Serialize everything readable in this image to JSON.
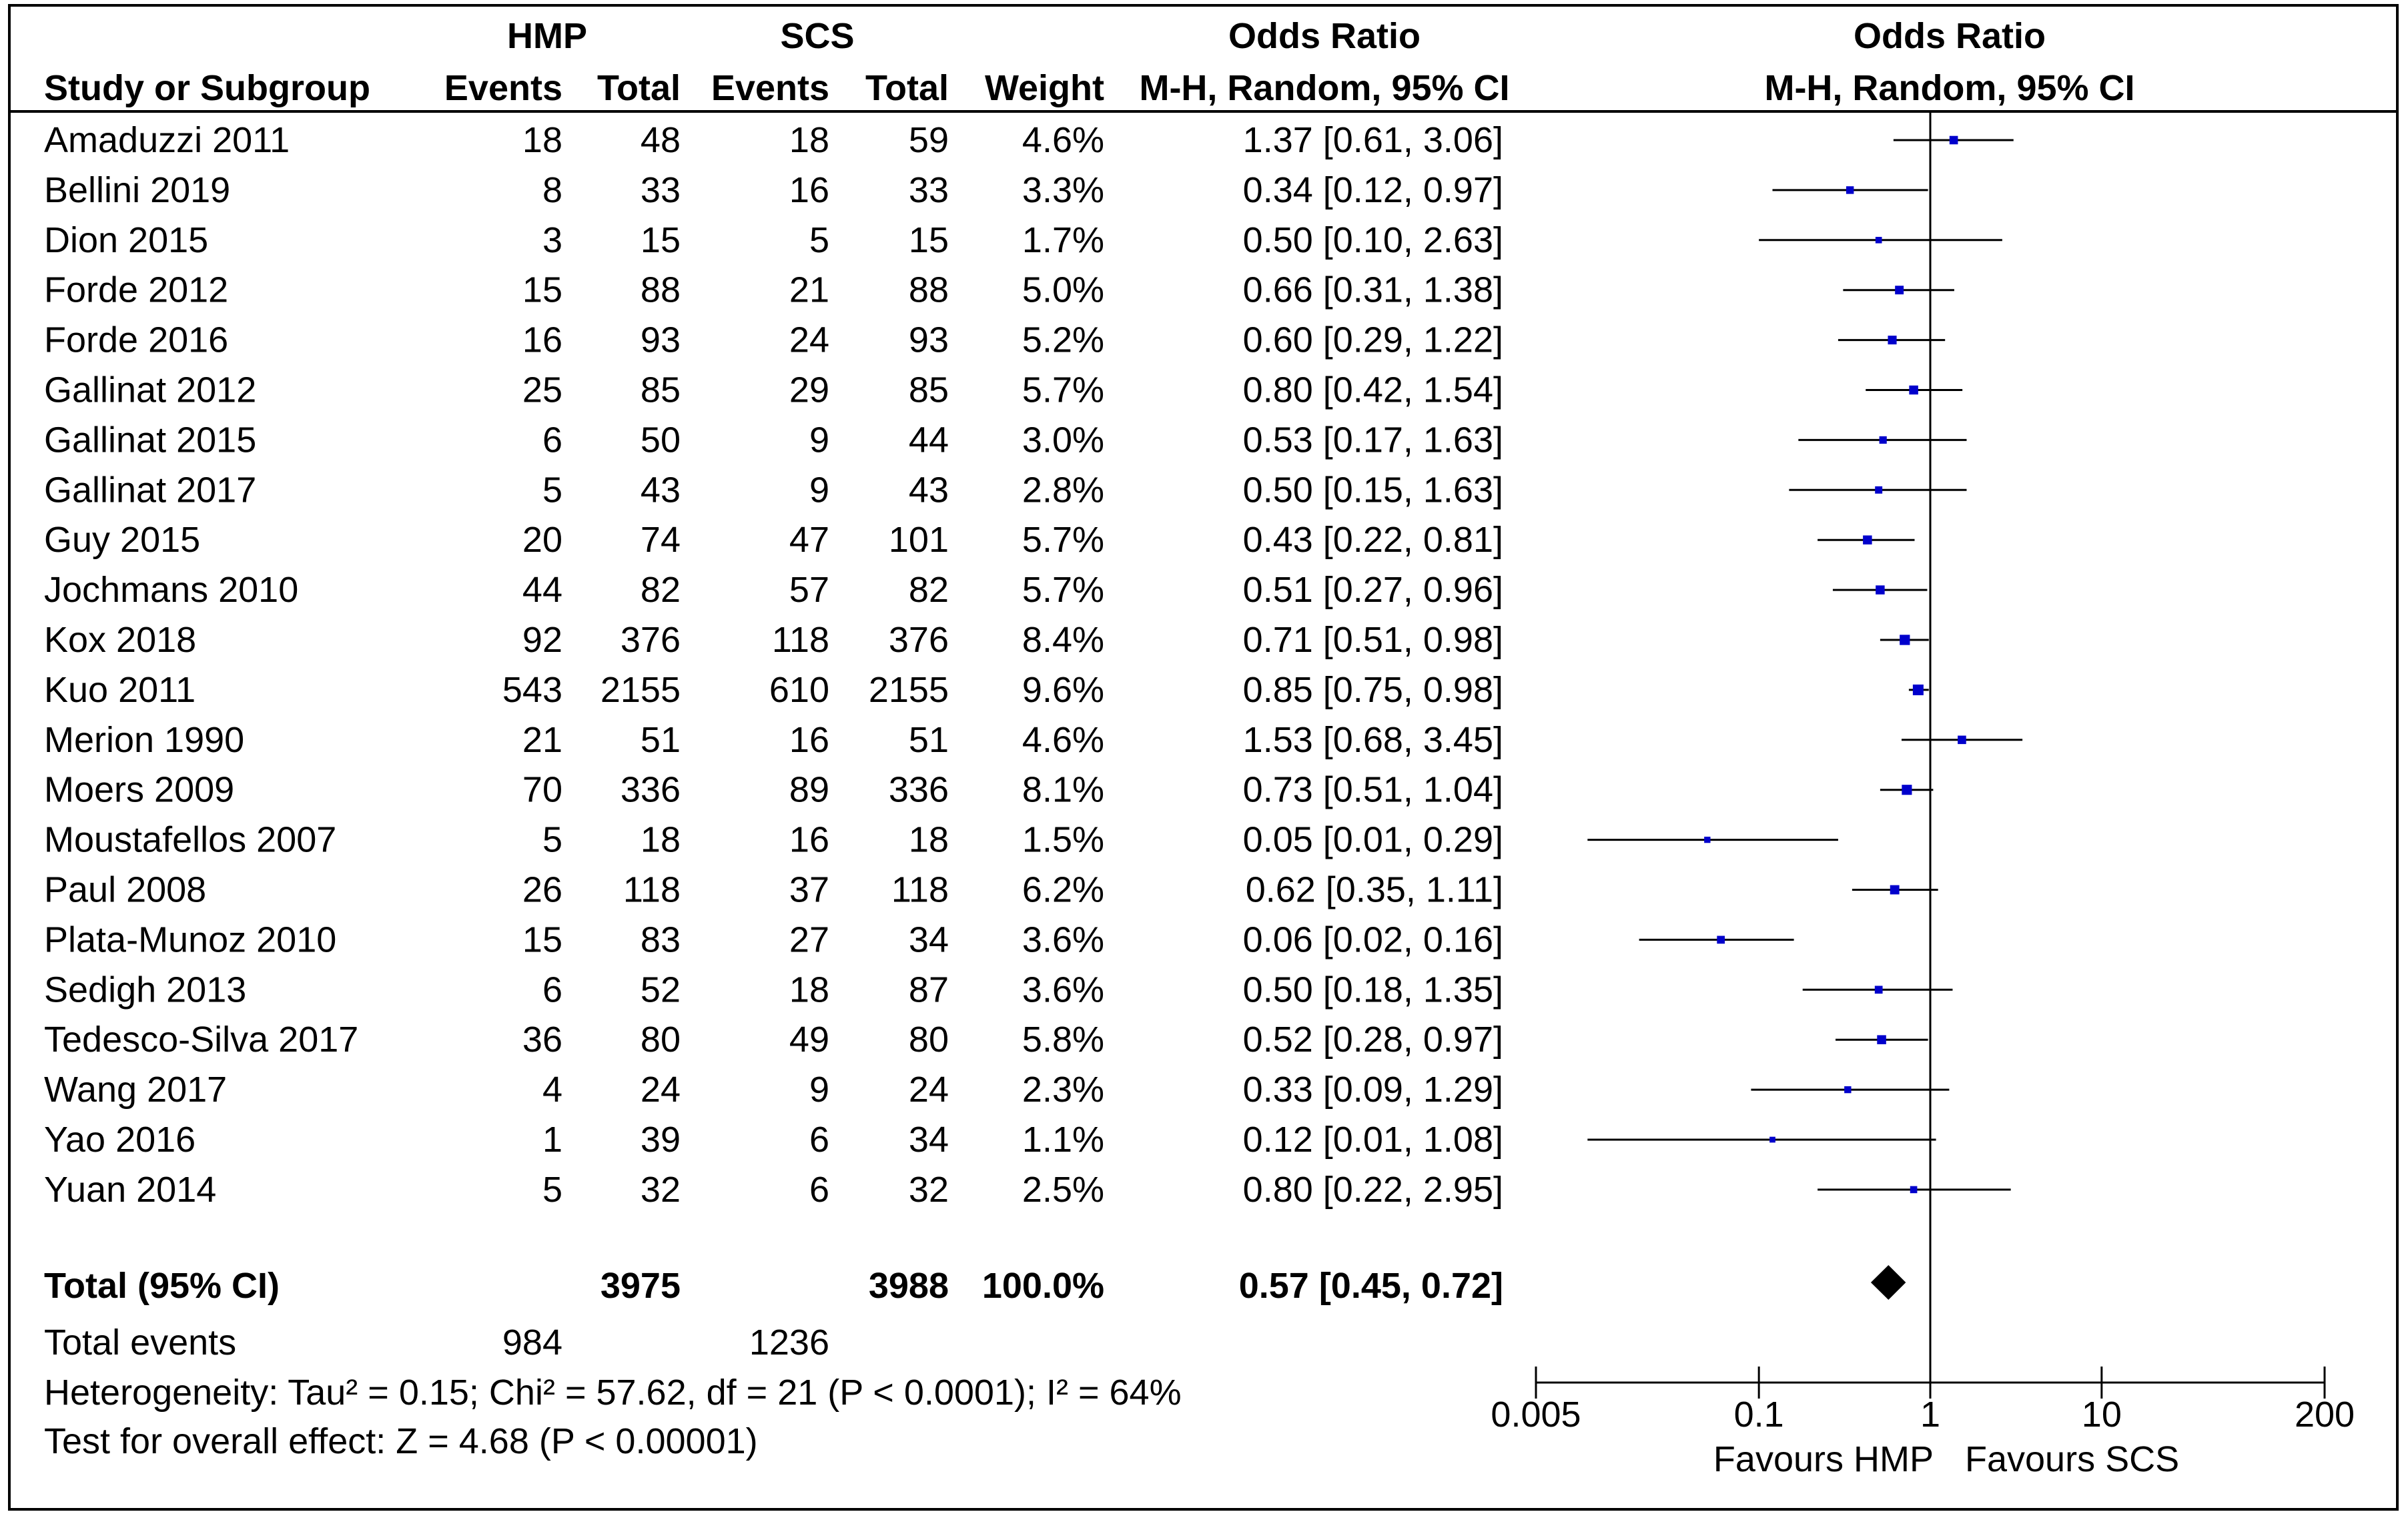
{
  "chart_data": {
    "type": "forest",
    "headers": {
      "group1": "HMP",
      "group2": "SCS",
      "effect_left": "Odds Ratio",
      "effect_right": "Odds Ratio",
      "study": "Study or Subgroup",
      "events": "Events",
      "total": "Total",
      "weight": "Weight",
      "method_left": "M-H, Random, 95% CI",
      "method_right": "M-H, Random, 95% CI"
    },
    "studies": [
      {
        "name": "Amaduzzi 2011",
        "e1": "18",
        "t1": "48",
        "e2": "18",
        "t2": "59",
        "weight": "4.6%",
        "ci": "1.37 [0.61, 3.06]",
        "or": 1.37,
        "lo": 0.61,
        "hi": 3.06
      },
      {
        "name": "Bellini 2019",
        "e1": "8",
        "t1": "33",
        "e2": "16",
        "t2": "33",
        "weight": "3.3%",
        "ci": "0.34 [0.12, 0.97]",
        "or": 0.34,
        "lo": 0.12,
        "hi": 0.97
      },
      {
        "name": "Dion 2015",
        "e1": "3",
        "t1": "15",
        "e2": "5",
        "t2": "15",
        "weight": "1.7%",
        "ci": "0.50 [0.10, 2.63]",
        "or": 0.5,
        "lo": 0.1,
        "hi": 2.63
      },
      {
        "name": "Forde 2012",
        "e1": "15",
        "t1": "88",
        "e2": "21",
        "t2": "88",
        "weight": "5.0%",
        "ci": "0.66 [0.31, 1.38]",
        "or": 0.66,
        "lo": 0.31,
        "hi": 1.38
      },
      {
        "name": "Forde 2016",
        "e1": "16",
        "t1": "93",
        "e2": "24",
        "t2": "93",
        "weight": "5.2%",
        "ci": "0.60 [0.29, 1.22]",
        "or": 0.6,
        "lo": 0.29,
        "hi": 1.22
      },
      {
        "name": "Gallinat 2012",
        "e1": "25",
        "t1": "85",
        "e2": "29",
        "t2": "85",
        "weight": "5.7%",
        "ci": "0.80 [0.42, 1.54]",
        "or": 0.8,
        "lo": 0.42,
        "hi": 1.54
      },
      {
        "name": "Gallinat 2015",
        "e1": "6",
        "t1": "50",
        "e2": "9",
        "t2": "44",
        "weight": "3.0%",
        "ci": "0.53 [0.17, 1.63]",
        "or": 0.53,
        "lo": 0.17,
        "hi": 1.63
      },
      {
        "name": "Gallinat 2017",
        "e1": "5",
        "t1": "43",
        "e2": "9",
        "t2": "43",
        "weight": "2.8%",
        "ci": "0.50 [0.15, 1.63]",
        "or": 0.5,
        "lo": 0.15,
        "hi": 1.63
      },
      {
        "name": "Guy 2015",
        "e1": "20",
        "t1": "74",
        "e2": "47",
        "t2": "101",
        "weight": "5.7%",
        "ci": "0.43 [0.22, 0.81]",
        "or": 0.43,
        "lo": 0.22,
        "hi": 0.81
      },
      {
        "name": "Jochmans 2010",
        "e1": "44",
        "t1": "82",
        "e2": "57",
        "t2": "82",
        "weight": "5.7%",
        "ci": "0.51 [0.27, 0.96]",
        "or": 0.51,
        "lo": 0.27,
        "hi": 0.96
      },
      {
        "name": "Kox 2018",
        "e1": "92",
        "t1": "376",
        "e2": "118",
        "t2": "376",
        "weight": "8.4%",
        "ci": "0.71 [0.51, 0.98]",
        "or": 0.71,
        "lo": 0.51,
        "hi": 0.98
      },
      {
        "name": "Kuo 2011",
        "e1": "543",
        "t1": "2155",
        "e2": "610",
        "t2": "2155",
        "weight": "9.6%",
        "ci": "0.85 [0.75, 0.98]",
        "or": 0.85,
        "lo": 0.75,
        "hi": 0.98
      },
      {
        "name": "Merion 1990",
        "e1": "21",
        "t1": "51",
        "e2": "16",
        "t2": "51",
        "weight": "4.6%",
        "ci": "1.53 [0.68, 3.45]",
        "or": 1.53,
        "lo": 0.68,
        "hi": 3.45
      },
      {
        "name": "Moers 2009",
        "e1": "70",
        "t1": "336",
        "e2": "89",
        "t2": "336",
        "weight": "8.1%",
        "ci": "0.73 [0.51, 1.04]",
        "or": 0.73,
        "lo": 0.51,
        "hi": 1.04
      },
      {
        "name": "Moustafellos 2007",
        "e1": "5",
        "t1": "18",
        "e2": "16",
        "t2": "18",
        "weight": "1.5%",
        "ci": "0.05 [0.01, 0.29]",
        "or": 0.05,
        "lo": 0.01,
        "hi": 0.29
      },
      {
        "name": "Paul 2008",
        "e1": "26",
        "t1": "118",
        "e2": "37",
        "t2": "118",
        "weight": "6.2%",
        "ci": "0.62 [0.35, 1.11]",
        "or": 0.62,
        "lo": 0.35,
        "hi": 1.11
      },
      {
        "name": "Plata-Munoz 2010",
        "e1": "15",
        "t1": "83",
        "e2": "27",
        "t2": "34",
        "weight": "3.6%",
        "ci": "0.06 [0.02, 0.16]",
        "or": 0.06,
        "lo": 0.02,
        "hi": 0.16
      },
      {
        "name": "Sedigh 2013",
        "e1": "6",
        "t1": "52",
        "e2": "18",
        "t2": "87",
        "weight": "3.6%",
        "ci": "0.50 [0.18, 1.35]",
        "or": 0.5,
        "lo": 0.18,
        "hi": 1.35
      },
      {
        "name": "Tedesco-Silva 2017",
        "e1": "36",
        "t1": "80",
        "e2": "49",
        "t2": "80",
        "weight": "5.8%",
        "ci": "0.52 [0.28, 0.97]",
        "or": 0.52,
        "lo": 0.28,
        "hi": 0.97
      },
      {
        "name": "Wang 2017",
        "e1": "4",
        "t1": "24",
        "e2": "9",
        "t2": "24",
        "weight": "2.3%",
        "ci": "0.33 [0.09, 1.29]",
        "or": 0.33,
        "lo": 0.09,
        "hi": 1.29
      },
      {
        "name": "Yao 2016",
        "e1": "1",
        "t1": "39",
        "e2": "6",
        "t2": "34",
        "weight": "1.1%",
        "ci": "0.12 [0.01, 1.08]",
        "or": 0.12,
        "lo": 0.01,
        "hi": 1.08
      },
      {
        "name": "Yuan 2014",
        "e1": "5",
        "t1": "32",
        "e2": "6",
        "t2": "32",
        "weight": "2.5%",
        "ci": "0.80 [0.22, 2.95]",
        "or": 0.8,
        "lo": 0.22,
        "hi": 2.95
      }
    ],
    "total": {
      "label": "Total (95% CI)",
      "t1": "3975",
      "t2": "3988",
      "weight": "100.0%",
      "ci": "0.57 [0.45, 0.72]",
      "or": 0.57,
      "lo": 0.45,
      "hi": 0.72
    },
    "total_events": {
      "label": "Total events",
      "e1": "984",
      "e2": "1236"
    },
    "heterogeneity": "Heterogeneity: Tau² = 0.15; Chi² = 57.62, df = 21 (P < 0.0001); I² = 64%",
    "overall_effect": "Test for overall effect: Z = 4.68 (P < 0.00001)",
    "axis": {
      "scale": "log",
      "xlim": [
        0.005,
        200
      ],
      "ticks": [
        {
          "value": 0.005,
          "label": "0.005"
        },
        {
          "value": 0.1,
          "label": "0.1"
        },
        {
          "value": 1,
          "label": "1"
        },
        {
          "value": 10,
          "label": "10"
        },
        {
          "value": 200,
          "label": "200"
        }
      ],
      "favours_left": "Favours HMP",
      "favours_right": "Favours SCS"
    },
    "marker_color": "#0000cc"
  }
}
